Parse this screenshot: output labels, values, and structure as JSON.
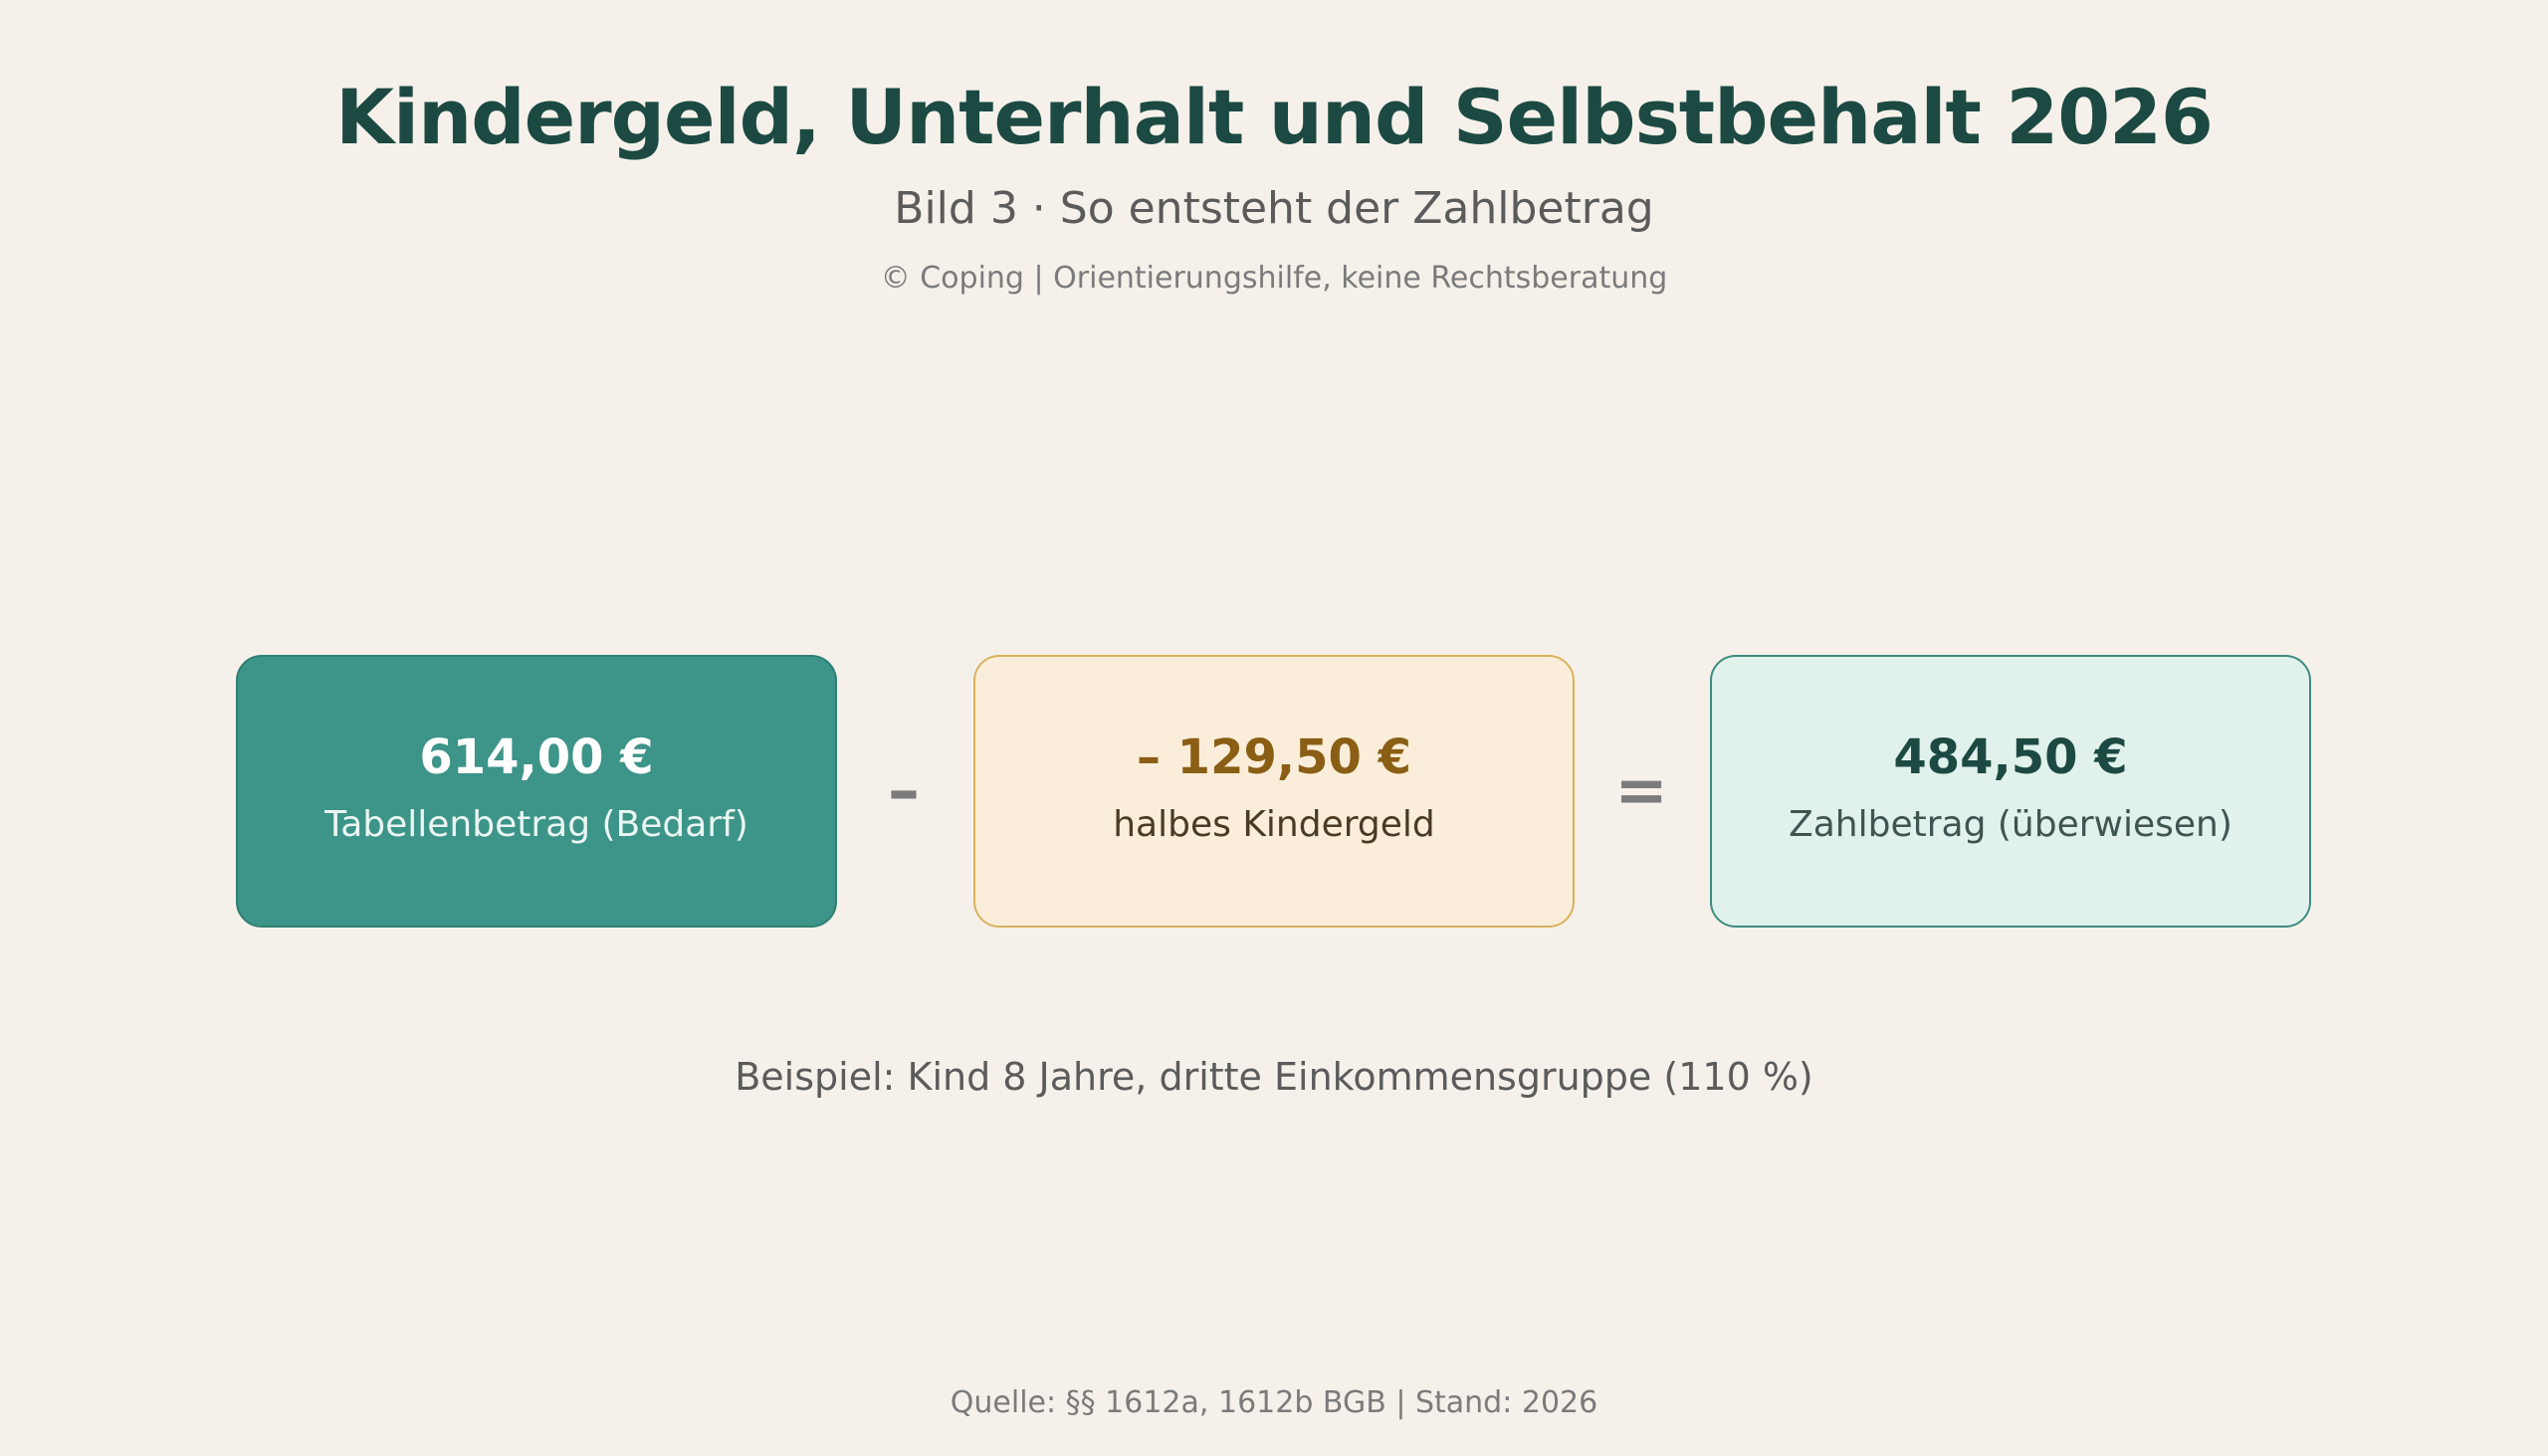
{
  "header": {
    "title": "Kindergeld, Unterhalt und Selbstbehalt 2026",
    "subtitle": "Bild 3 · So entsteht der Zahlbetrag",
    "credit": "© Coping | Orientierungshilfe, keine Rechtsberatung"
  },
  "calculation": {
    "need": {
      "amount": "614,00 €",
      "label": "Tabellenbetrag (Bedarf)"
    },
    "minus_operator": "–",
    "child_benefit": {
      "amount": "– 129,50 €",
      "label": "halbes Kindergeld"
    },
    "equals_operator": "=",
    "payment": {
      "amount": "484,50 €",
      "label": "Zahlbetrag (überwiesen)"
    }
  },
  "example": "Beispiel: Kind 8 Jahre, dritte Einkommensgruppe (110 %)",
  "footer": {
    "source": "Quelle: §§ 1612a, 1612b BGB | Stand: 2026"
  },
  "colors": {
    "background": "#f5f1ea",
    "title": "#1c4a42",
    "need_box": "#3d9488",
    "child_box": "#faeedb",
    "child_box_border": "#d8b25d",
    "payment_box": "#e1f1ec",
    "payment_box_border": "#3d8c7f"
  }
}
